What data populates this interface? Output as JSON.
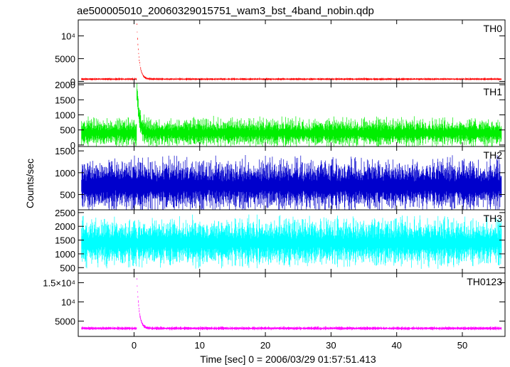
{
  "chart_data": {
    "type": "line",
    "title": "ae500005010_20060329015751_wam3_bst_4band_nobin.qdp",
    "xlabel": "Time [sec] 0 = 2006/03/29 01:57:51.413",
    "ylabel": "Counts/sec",
    "xlim": [
      -8.5,
      56.5
    ],
    "x_ticks": [
      0,
      10,
      20,
      30,
      40,
      50
    ],
    "x_tick_labels": [
      "0",
      "10",
      "20",
      "30",
      "40",
      "50"
    ],
    "grid": false,
    "legend": "none",
    "panels": [
      {
        "name": "TH0",
        "color": "#ff0000",
        "ylim": [
          -400,
          13500
        ],
        "y_ticks": [
          0,
          5000,
          10000
        ],
        "y_tick_labels": [
          "0",
          "5000",
          "10⁴"
        ],
        "baseline": 500,
        "noise": 200,
        "burst_peak": 13500,
        "burst_time": 0.4
      },
      {
        "name": "TH1",
        "color": "#00ee00",
        "ylim": [
          -50,
          2050
        ],
        "y_ticks": [
          0,
          500,
          1000,
          1500,
          2000
        ],
        "y_tick_labels": [
          "0",
          "500",
          "1000",
          "1500",
          "2000"
        ],
        "baseline": 400,
        "noise": 350,
        "burst_peak": 2000,
        "burst_time": 0.4
      },
      {
        "name": "TH2",
        "color": "#0000cc",
        "ylim": [
          150,
          1600
        ],
        "y_ticks": [
          500,
          1000,
          1500
        ],
        "y_tick_labels": [
          "500",
          "1000",
          "1500"
        ],
        "baseline": 700,
        "noise": 450,
        "burst_peak": 0,
        "burst_time": 0.4
      },
      {
        "name": "TH3",
        "color": "#00ffff",
        "ylim": [
          300,
          2600
        ],
        "y_ticks": [
          500,
          1000,
          1500,
          2000,
          2500
        ],
        "y_tick_labels": [
          "500",
          "1000",
          "1500",
          "2000",
          "2500"
        ],
        "baseline": 1400,
        "noise": 650,
        "burst_peak": 0,
        "burst_time": 0.4
      },
      {
        "name": "TH0123",
        "color": "#ff00ff",
        "ylim": [
          1000,
          17500
        ],
        "y_ticks": [
          5000,
          10000,
          15000
        ],
        "y_tick_labels": [
          "5000",
          "10⁴",
          "1.5×10⁴"
        ],
        "baseline": 3100,
        "noise": 350,
        "burst_peak": 17000,
        "burst_time": 0.4
      }
    ]
  }
}
